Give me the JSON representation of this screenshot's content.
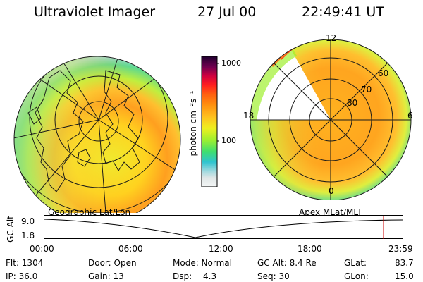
{
  "header": {
    "title": "Ultraviolet Imager",
    "date": "27 Jul 00",
    "time": "22:49:41 UT"
  },
  "colorbar": {
    "label": "photon cm⁻²s⁻¹",
    "ticks": [
      "1000",
      "100"
    ],
    "stops": [
      "#dfe6e6",
      "#9fd9df",
      "#2fc4cf",
      "#3fdf6f",
      "#9fef2f",
      "#efef1f",
      "#ffbf1f",
      "#ff8f0f",
      "#ff5f0f",
      "#ff1f1f",
      "#cf003f",
      "#8f004f",
      "#4f004f",
      "#1f002f"
    ]
  },
  "left_panel": {
    "projection_label": "Geographic Lat/Lon"
  },
  "right_panel": {
    "projection_label": "Apex MLat/MLT",
    "mlt_labels": {
      "top": "12",
      "left": "18",
      "right": "6",
      "bottom": "0"
    },
    "lat_labels": [
      "60",
      "70",
      "80"
    ]
  },
  "altitude_plot": {
    "ylabel": "GC Alt",
    "yticks": [
      "9.0",
      "1.8"
    ],
    "xticks": [
      "00:00",
      "06:00",
      "12:00",
      "18:00",
      "23:59"
    ],
    "marker_color": "#cc0000"
  },
  "status": {
    "flt": "Flt: 1304",
    "ip": "IP: 36.0",
    "door": "Door: Open",
    "gain": "Gain: 13",
    "mode": "Mode: Normal",
    "dsp_label": "Dsp:",
    "dsp_value": "4.3",
    "gc_alt": "GC Alt: 8.4 Re",
    "seq": "Seq: 30",
    "glat_label": "GLat:",
    "glat_value": "83.7",
    "glon_label": "GLon:",
    "glon_value": "15.0"
  }
}
